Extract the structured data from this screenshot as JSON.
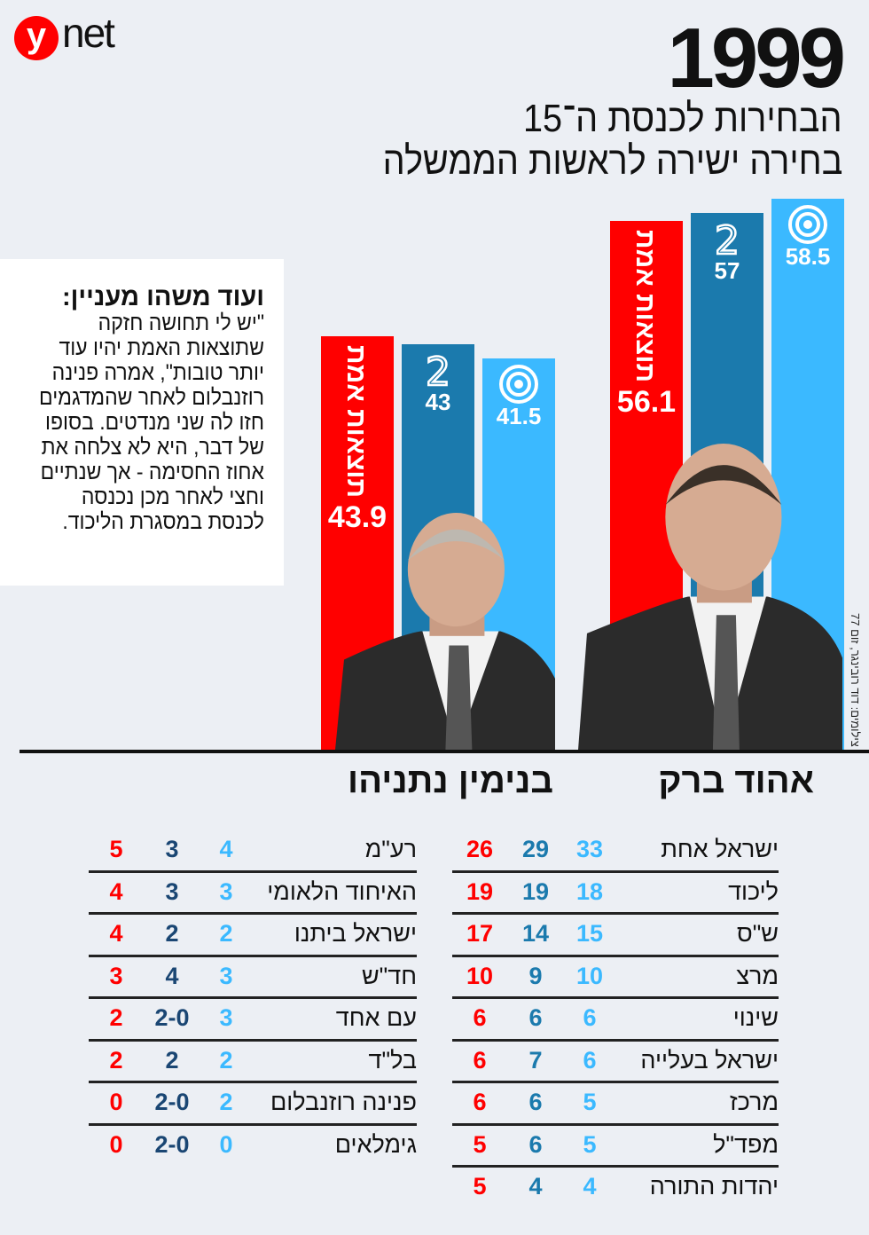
{
  "logo": {
    "y": "y",
    "net": "net"
  },
  "header": {
    "year": "1999",
    "subtitle1": "הבחירות לכנסת ה־15",
    "subtitle2": "בחירה ישירה לראשות הממשלה"
  },
  "note": {
    "title": "ועוד משהו מעניין:",
    "text": "\"יש לי תחושה חזקה שתוצאות האמת יהיו עוד יותר טובות\", אמרה פנינה רוזנבלום לאחר שהמדגמים חזו לה שני מנדטים. בסופו של דבר, היא לא צלחה את אחוז החסימה - אך שנתיים וחצי לאחר מכן נכנסה לכנסת במסגרת הליכוד."
  },
  "credit": "צילומים: דוד רובינגר, זום 77",
  "colors": {
    "actual": "#ff0000",
    "channel2": "#1b7aad",
    "channel1": "#3bb9ff"
  },
  "chart_data": {
    "type": "bar",
    "title": "בחירה ישירה לראשות הממשלה 1999",
    "categories": [
      "אהוד ברק",
      "בנימין נתניהו"
    ],
    "series": [
      {
        "name": "תוצאות אמת",
        "values": [
          56.1,
          43.9
        ]
      },
      {
        "name": "ערוץ 2",
        "icon": "channel-2-logo",
        "values": [
          57,
          43
        ]
      },
      {
        "name": "ערוץ 1",
        "icon": "channel-1-logo",
        "values": [
          58.5,
          41.5
        ]
      }
    ],
    "ylim": [
      0,
      80
    ]
  },
  "tables": {
    "barak": [
      {
        "party": "ישראל אחת",
        "actual": "26",
        "ch2": "29",
        "ch1": "33"
      },
      {
        "party": "ליכוד",
        "actual": "19",
        "ch2": "19",
        "ch1": "18"
      },
      {
        "party": "ש\"ס",
        "actual": "17",
        "ch2": "14",
        "ch1": "15"
      },
      {
        "party": "מרצ",
        "actual": "10",
        "ch2": "9",
        "ch1": "10"
      },
      {
        "party": "שינוי",
        "actual": "6",
        "ch2": "6",
        "ch1": "6"
      },
      {
        "party": "ישראל בעלייה",
        "actual": "6",
        "ch2": "7",
        "ch1": "6"
      },
      {
        "party": "מרכז",
        "actual": "6",
        "ch2": "6",
        "ch1": "5"
      },
      {
        "party": "מפד\"ל",
        "actual": "5",
        "ch2": "6",
        "ch1": "5"
      },
      {
        "party": "יהדות התורה",
        "actual": "5",
        "ch2": "4",
        "ch1": "4"
      }
    ],
    "netanyahu": [
      {
        "party": "רע\"מ",
        "actual": "5",
        "ch2": "3",
        "ch1": "4"
      },
      {
        "party": "האיחוד הלאומי",
        "actual": "4",
        "ch2": "3",
        "ch1": "3"
      },
      {
        "party": "ישראל ביתנו",
        "actual": "4",
        "ch2": "2",
        "ch1": "2"
      },
      {
        "party": "חד\"ש",
        "actual": "3",
        "ch2": "4",
        "ch1": "3"
      },
      {
        "party": "עם אחד",
        "actual": "2",
        "ch2": "2-0",
        "ch1": "3"
      },
      {
        "party": "בל\"ד",
        "actual": "2",
        "ch2": "2",
        "ch1": "2"
      },
      {
        "party": "פנינה רוזנבלום",
        "actual": "0",
        "ch2": "2-0",
        "ch1": "2"
      },
      {
        "party": "גימלאים",
        "actual": "0",
        "ch2": "2-0",
        "ch1": "0"
      }
    ]
  }
}
